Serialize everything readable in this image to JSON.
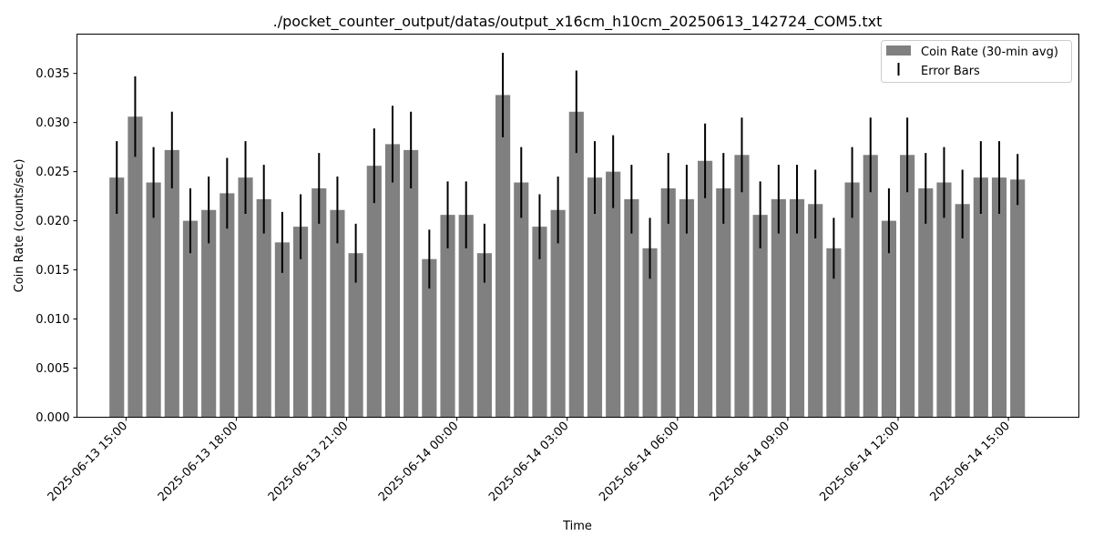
{
  "chart_data": {
    "type": "bar",
    "title": "./pocket_counter_output/datas/output_x16cm_h10cm_20250613_142724_COM5.txt",
    "xlabel": "Time",
    "ylabel": "Coin Rate (counts/sec)",
    "ylim": [
      0,
      0.039
    ],
    "yticks": [
      "0.000",
      "0.005",
      "0.010",
      "0.015",
      "0.020",
      "0.025",
      "0.030",
      "0.035"
    ],
    "xlim": [
      "2025-06-13 13:40",
      "2025-06-14 16:55"
    ],
    "xticks": [
      "2025-06-13 15:00",
      "2025-06-13 18:00",
      "2025-06-13 21:00",
      "2025-06-14 00:00",
      "2025-06-14 03:00",
      "2025-06-14 06:00",
      "2025-06-14 09:00",
      "2025-06-14 12:00",
      "2025-06-14 15:00"
    ],
    "bar_width_minutes": 24,
    "x": [
      "2025-06-13 14:45",
      "2025-06-13 15:15",
      "2025-06-13 15:45",
      "2025-06-13 16:15",
      "2025-06-13 16:45",
      "2025-06-13 17:15",
      "2025-06-13 17:45",
      "2025-06-13 18:15",
      "2025-06-13 18:45",
      "2025-06-13 19:15",
      "2025-06-13 19:45",
      "2025-06-13 20:15",
      "2025-06-13 20:45",
      "2025-06-13 21:15",
      "2025-06-13 21:45",
      "2025-06-13 22:15",
      "2025-06-13 22:45",
      "2025-06-13 23:15",
      "2025-06-13 23:45",
      "2025-06-14 00:15",
      "2025-06-14 00:45",
      "2025-06-14 01:15",
      "2025-06-14 01:45",
      "2025-06-14 02:15",
      "2025-06-14 02:45",
      "2025-06-14 03:15",
      "2025-06-14 03:45",
      "2025-06-14 04:15",
      "2025-06-14 04:45",
      "2025-06-14 05:15",
      "2025-06-14 05:45",
      "2025-06-14 06:15",
      "2025-06-14 06:45",
      "2025-06-14 07:15",
      "2025-06-14 07:45",
      "2025-06-14 08:15",
      "2025-06-14 08:45",
      "2025-06-14 09:15",
      "2025-06-14 09:45",
      "2025-06-14 10:15",
      "2025-06-14 10:45",
      "2025-06-14 11:15",
      "2025-06-14 11:45",
      "2025-06-14 12:15",
      "2025-06-14 12:45",
      "2025-06-14 13:15",
      "2025-06-14 13:45",
      "2025-06-14 14:15",
      "2025-06-14 14:45",
      "2025-06-14 15:15"
    ],
    "series": [
      {
        "name": "Coin Rate (30-min avg)",
        "color": "#808080",
        "values": [
          0.0244,
          0.0306,
          0.0239,
          0.0272,
          0.02,
          0.0211,
          0.0228,
          0.0244,
          0.0222,
          0.0178,
          0.0194,
          0.0233,
          0.0211,
          0.0167,
          0.0256,
          0.0278,
          0.0272,
          0.0161,
          0.0206,
          0.0206,
          0.0167,
          0.0328,
          0.0239,
          0.0194,
          0.0211,
          0.0311,
          0.0244,
          0.025,
          0.0222,
          0.0172,
          0.0233,
          0.0222,
          0.0261,
          0.0233,
          0.0267,
          0.0206,
          0.0222,
          0.0222,
          0.0217,
          0.0172,
          0.0239,
          0.0267,
          0.02,
          0.0267,
          0.0233,
          0.0239,
          0.0217,
          0.0244,
          0.0244,
          0.0242
        ]
      },
      {
        "name": "Error Bars",
        "color": "#000000",
        "values": [
          0.0037,
          0.0041,
          0.0036,
          0.0039,
          0.0033,
          0.0034,
          0.0036,
          0.0037,
          0.0035,
          0.0031,
          0.0033,
          0.0036,
          0.0034,
          0.003,
          0.0038,
          0.0039,
          0.0039,
          0.003,
          0.0034,
          0.0034,
          0.003,
          0.0043,
          0.0036,
          0.0033,
          0.0034,
          0.0042,
          0.0037,
          0.0037,
          0.0035,
          0.0031,
          0.0036,
          0.0035,
          0.0038,
          0.0036,
          0.0038,
          0.0034,
          0.0035,
          0.0035,
          0.0035,
          0.0031,
          0.0036,
          0.0038,
          0.0033,
          0.0038,
          0.0036,
          0.0036,
          0.0035,
          0.0037,
          0.0037,
          0.0026
        ]
      }
    ],
    "legend": {
      "position": "top-right"
    },
    "grid": false
  }
}
